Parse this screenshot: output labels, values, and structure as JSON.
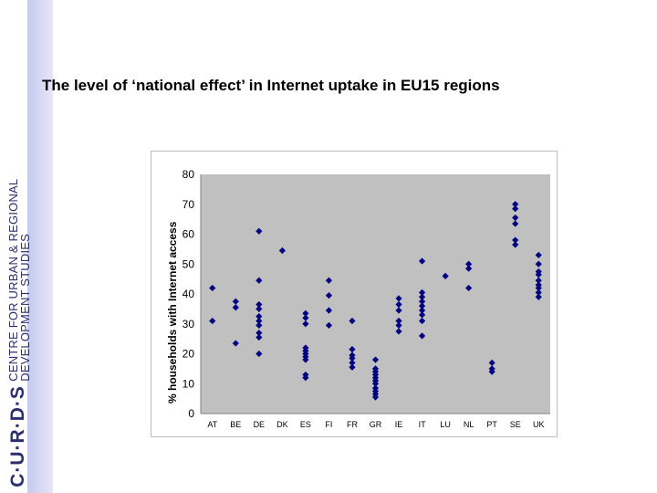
{
  "brand": {
    "logo": "C·U·R·D·S",
    "name_line1": "CENTRE FOR URBAN & REGIONAL",
    "name_line2": "DEVELOPMENT STUDIES"
  },
  "title": "The level of ‘national effect’ in Internet uptake in EU15 regions",
  "chart_data": {
    "type": "scatter",
    "title": "",
    "xlabel": "",
    "ylabel": "% households with Internet access",
    "ylim": [
      0,
      80
    ],
    "yticks": [
      0,
      10,
      20,
      30,
      40,
      50,
      60,
      70,
      80
    ],
    "grid": false,
    "plot_background": "#c0c0c0",
    "marker_color": "#000080",
    "categories": [
      "AT",
      "BE",
      "DE",
      "DK",
      "ES",
      "FI",
      "FR",
      "GR",
      "IE",
      "IT",
      "LU",
      "NL",
      "PT",
      "SE",
      "UK"
    ],
    "points": {
      "AT": [
        42,
        31
      ],
      "BE": [
        37.5,
        35.5,
        23.5
      ],
      "DE": [
        61,
        44.5,
        36.5,
        35,
        32.5,
        31,
        29.5,
        27,
        25.5,
        20
      ],
      "DK": [
        54.5
      ],
      "ES": [
        33.5,
        32,
        30,
        22,
        21,
        20,
        19,
        18,
        13,
        12
      ],
      "FI": [
        44.5,
        39.5,
        34.5,
        29.5
      ],
      "FR": [
        31,
        21.5,
        19.5,
        18.5,
        17,
        15.5
      ],
      "GR": [
        18,
        15,
        14,
        13,
        12,
        11,
        10,
        8.5,
        7.5,
        6.5,
        5.5
      ],
      "IE": [
        38.5,
        36.5,
        34.5,
        31,
        29.5,
        27.5
      ],
      "IT": [
        51,
        40.5,
        39,
        37.5,
        36,
        34.5,
        33,
        31,
        26
      ],
      "LU": [
        46
      ],
      "NL": [
        50,
        48.5,
        42
      ],
      "PT": [
        17,
        15,
        14
      ],
      "SE": [
        70,
        68.5,
        65.5,
        63.5,
        58,
        56.5
      ],
      "UK": [
        53,
        50,
        47.5,
        46.5,
        44.5,
        43,
        42,
        40.5,
        39
      ]
    }
  }
}
